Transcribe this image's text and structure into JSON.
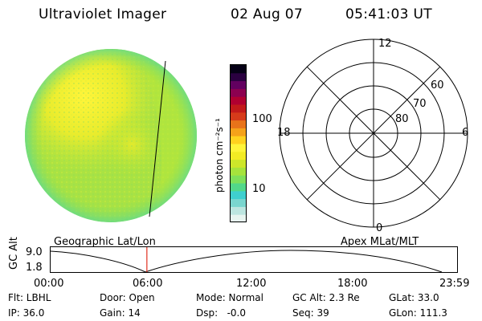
{
  "header": {
    "title": "Ultraviolet Imager",
    "date": "02 Aug 07",
    "time": "05:41:03 UT"
  },
  "colorbar": {
    "label": "photon cm⁻²s⁻¹",
    "ticks": [
      "100",
      "10"
    ],
    "colors": [
      "#e8f5f0",
      "#bde6e0",
      "#7ad6cf",
      "#3fcfcf",
      "#52d88a",
      "#7fe05a",
      "#a6e33c",
      "#cde62a",
      "#f3ec24",
      "#fff53a",
      "#ffd21f",
      "#f5a21a",
      "#e8731a",
      "#d63b1a",
      "#c21a1a",
      "#b00030",
      "#8c0050",
      "#620060",
      "#2a0040",
      "#050016"
    ]
  },
  "polar_plot": {
    "labels": {
      "top": "12",
      "bottom": "0",
      "left": "18",
      "right": "6",
      "ring60": "60",
      "ring70": "70",
      "ring80": "80"
    }
  },
  "timeline": {
    "left_caption": "Geographic Lat/Lon",
    "right_caption": "Apex MLat/MLT",
    "y_axis_label": "GC Alt",
    "y_max": "9.0",
    "y_min": "1.8",
    "x_ticks": [
      "00:00",
      "06:00",
      "12:00",
      "18:00",
      "23:59"
    ],
    "marker_time_hours": 5.68
  },
  "info": {
    "flt": "Flt: LBHL",
    "ip": "IP: 36.0",
    "door": "Door: Open",
    "gain": "Gain: 14",
    "mode": "Mode: Normal",
    "dsp": "Dsp:   -0.0",
    "gc_alt": "GC Alt: 2.3 Re",
    "seq": "Seq: 39",
    "glat": "GLat: 33.0",
    "glon": "GLon: 111.3"
  }
}
